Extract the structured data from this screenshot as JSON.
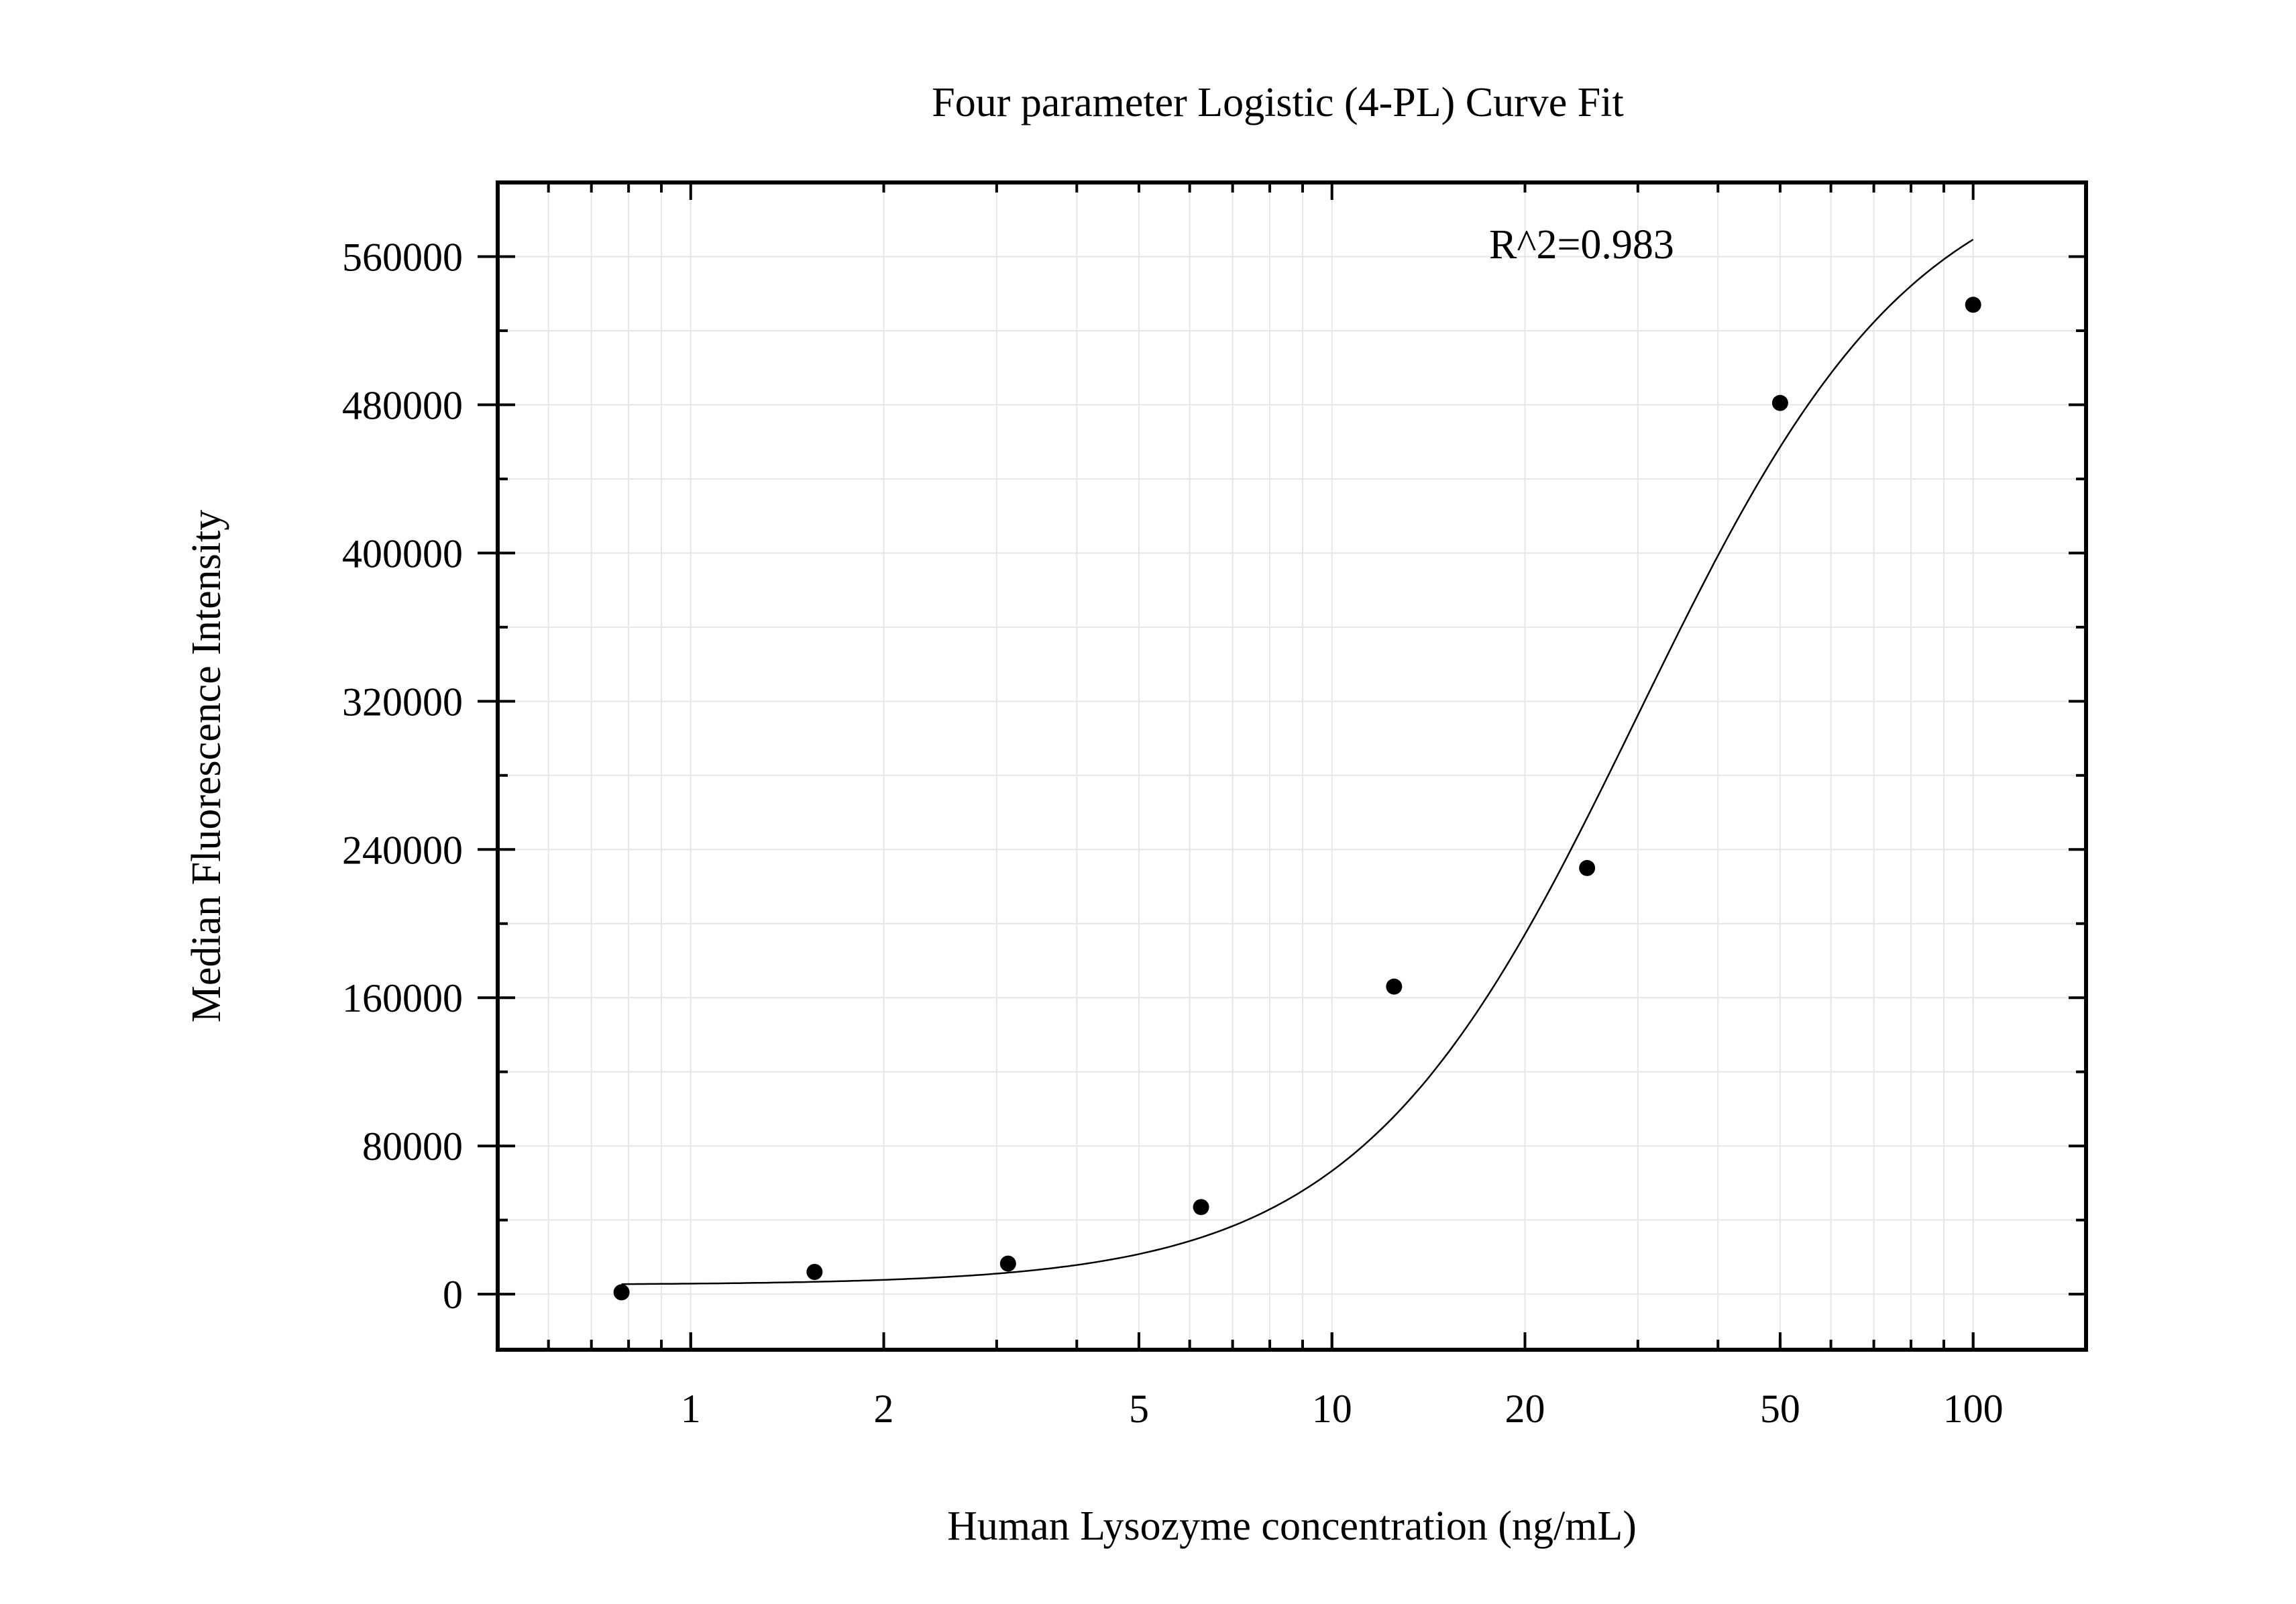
{
  "chart_data": {
    "type": "scatter",
    "title": "Four parameter Logistic (4-PL) Curve Fit",
    "xlabel": "Human Lysozyme concentration (ng/mL)",
    "ylabel": "Median Fluorescence Intensity",
    "x_scale": "log",
    "xlim": [
      0.5,
      150
    ],
    "ylim": [
      -30000,
      600000
    ],
    "x_ticks": [
      1,
      2,
      5,
      10,
      20,
      50,
      100
    ],
    "x_tick_labels": [
      "1",
      "2",
      "5",
      "10",
      "20",
      "50",
      "100"
    ],
    "y_ticks": [
      0,
      80000,
      160000,
      240000,
      320000,
      400000,
      480000,
      560000
    ],
    "y_tick_labels": [
      "0",
      "80000",
      "160000",
      "240000",
      "320000",
      "400000",
      "480000",
      "560000"
    ],
    "grid": true,
    "annotation": "R^2=0.983",
    "series": [
      {
        "kind": "points",
        "x": [
          0.78,
          1.56,
          3.125,
          6.25,
          12.5,
          25,
          50,
          100
        ],
        "y": [
          1000,
          12000,
          16500,
          47000,
          166000,
          230000,
          481000,
          534000
        ]
      },
      {
        "kind": "fit-curve",
        "model": "4PL",
        "x_range": [
          0.78,
          100
        ],
        "params": {
          "a": 5000,
          "b": 2.0,
          "c": 30,
          "d": 620000
        }
      }
    ],
    "colors": {
      "points": "#000000",
      "curve": "#000000",
      "grid": "#e6e6e6",
      "axes": "#000000"
    }
  }
}
